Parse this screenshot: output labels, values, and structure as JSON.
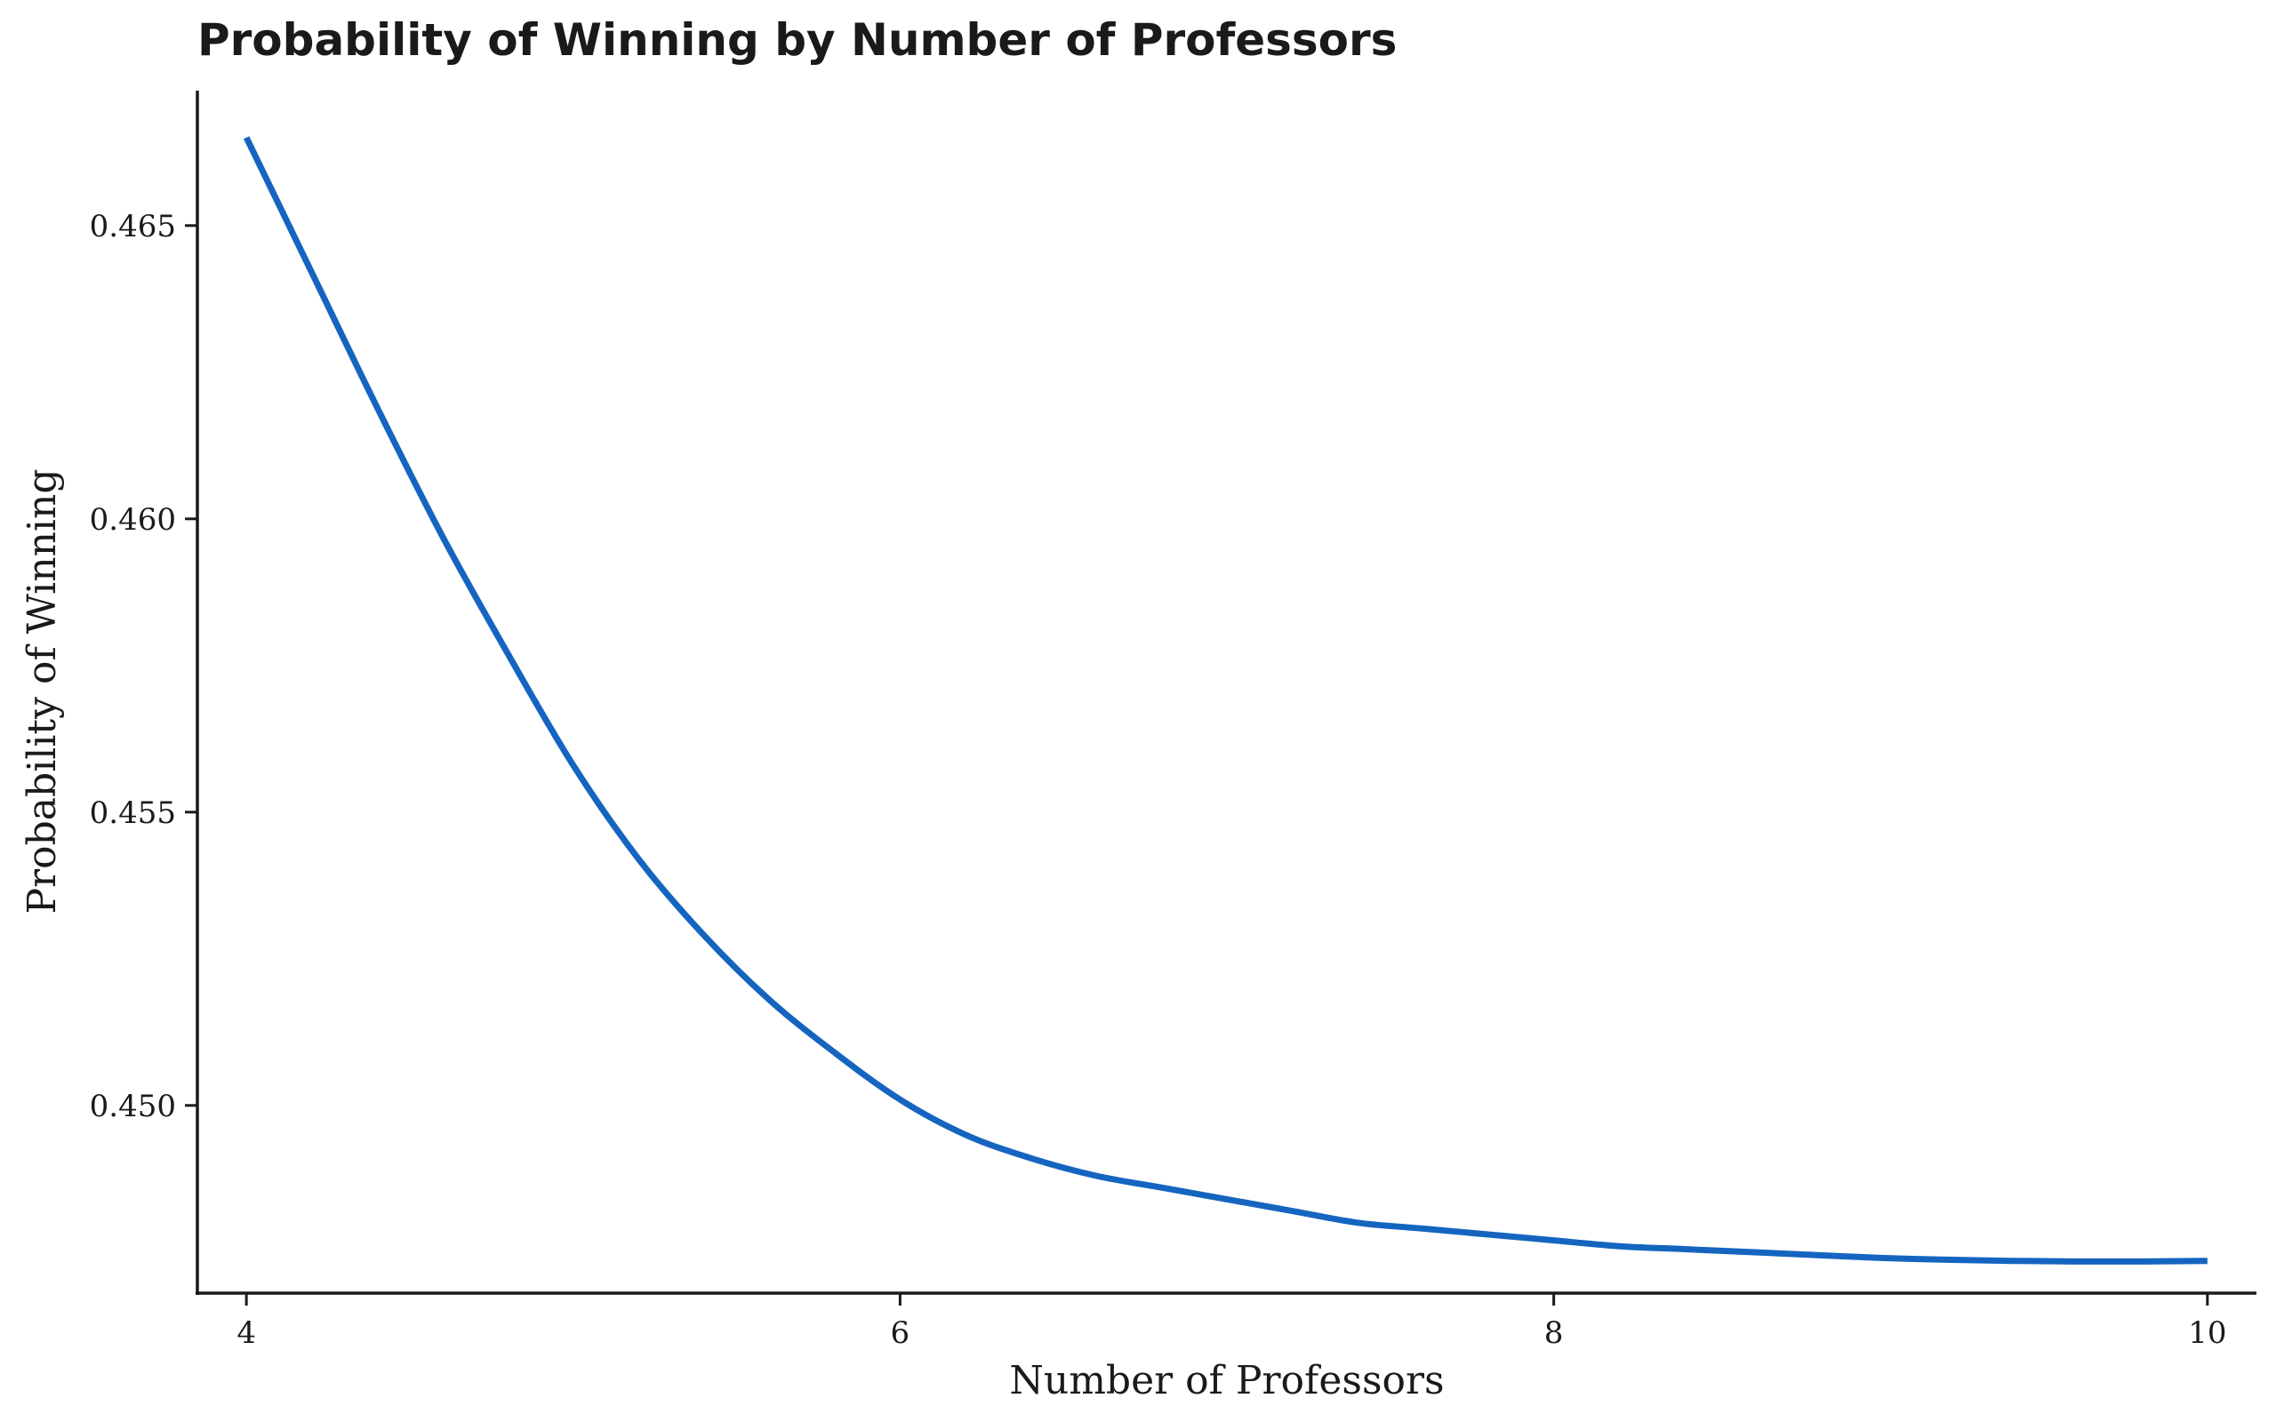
{
  "chart_data": {
    "type": "line",
    "title": "Probability of Winning by Number of Professors",
    "xlabel": "Number of Professors",
    "ylabel": "Probability of Winning",
    "xlim": [
      3.85,
      10.15
    ],
    "ylim": [
      0.4468,
      0.4673
    ],
    "x_ticks": [
      4,
      6,
      8,
      10
    ],
    "x_tick_labels": [
      "4",
      "6",
      "8",
      "10"
    ],
    "y_ticks": [
      0.45,
      0.455,
      0.46,
      0.465
    ],
    "y_tick_labels": [
      "0.450",
      "0.455",
      "0.460",
      "0.465"
    ],
    "grid": false,
    "legend": "none",
    "series": [
      {
        "color": "#1565c0",
        "x": [
          4.0,
          4.2,
          4.4,
          4.6,
          4.8,
          5.0,
          5.2,
          5.4,
          5.6,
          5.8,
          6.0,
          6.2,
          6.4,
          6.6,
          6.8,
          7.0,
          7.2,
          7.4,
          7.6,
          7.8,
          8.0,
          8.2,
          8.4,
          8.6,
          8.8,
          9.0,
          9.2,
          9.4,
          9.6,
          9.8,
          10.0
        ],
        "y": [
          0.4665,
          0.4642,
          0.4619,
          0.4597,
          0.4577,
          0.4558,
          0.4542,
          0.4529,
          0.4518,
          0.4509,
          0.4501,
          0.4495,
          0.4491,
          0.4488,
          0.4486,
          0.4484,
          0.4482,
          0.448,
          0.4479,
          0.4478,
          0.4477,
          0.4476,
          0.44755,
          0.4475,
          0.44745,
          0.4474,
          0.44737,
          0.44735,
          0.44734,
          0.44734,
          0.44735
        ]
      }
    ]
  }
}
